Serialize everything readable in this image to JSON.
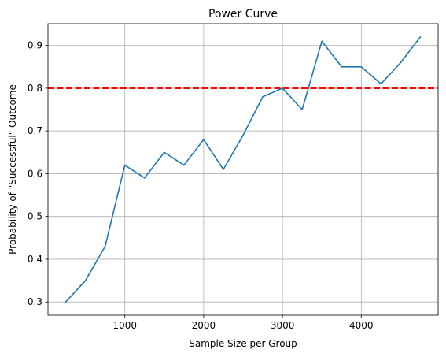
{
  "chart_data": {
    "type": "line",
    "title": "Power Curve",
    "xlabel": "Sample Size per Group",
    "ylabel": "Probability of \"Successful\" Outcome",
    "xlim": [
      25,
      4975
    ],
    "ylim": [
      0.269,
      0.951
    ],
    "xticks": [
      1000,
      2000,
      3000,
      4000
    ],
    "yticks": [
      0.3,
      0.4,
      0.5,
      0.6,
      0.7,
      0.8,
      0.9
    ],
    "grid": true,
    "series": [
      {
        "color": "#1f77b4",
        "x": [
          250,
          500,
          750,
          1000,
          1250,
          1500,
          1750,
          2000,
          2250,
          2500,
          2750,
          3000,
          3250,
          3500,
          3750,
          4000,
          4250,
          4500,
          4750
        ],
        "y": [
          0.3,
          0.35,
          0.43,
          0.62,
          0.59,
          0.65,
          0.62,
          0.68,
          0.61,
          0.69,
          0.78,
          0.8,
          0.75,
          0.91,
          0.85,
          0.85,
          0.81,
          0.86,
          0.92
        ]
      }
    ],
    "reference_lines": [
      {
        "orientation": "horizontal",
        "y": 0.8,
        "color": "#ff0000",
        "style": "dashed"
      }
    ]
  }
}
